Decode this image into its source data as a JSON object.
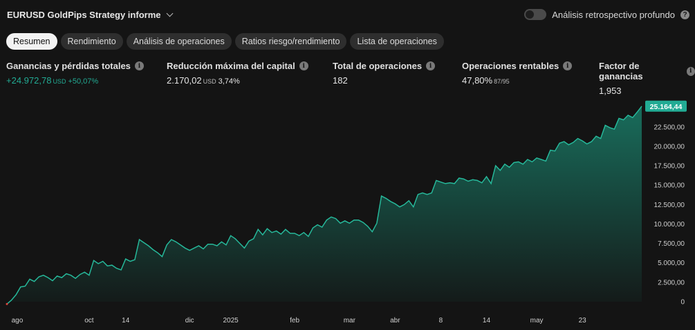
{
  "header": {
    "title": "EURUSD GoldPips Strategy informe",
    "deep_backtest_label": "Análisis retrospectivo profundo"
  },
  "tabs": [
    {
      "label": "Resumen",
      "active": true
    },
    {
      "label": "Rendimiento",
      "active": false
    },
    {
      "label": "Análisis de operaciones",
      "active": false
    },
    {
      "label": "Ratios riesgo/rendimiento",
      "active": false
    },
    {
      "label": "Lista de operaciones",
      "active": false
    }
  ],
  "stats": {
    "net_profit": {
      "label": "Ganancias y pérdidas totales",
      "value": "+24.972,78",
      "unit": "USD",
      "pct": "+50,07%"
    },
    "max_drawdown": {
      "label": "Reducción máxima del capital",
      "value": "2.170,02",
      "unit": "USD",
      "pct": "3,74%"
    },
    "total_trades": {
      "label": "Total de operaciones",
      "value": "182"
    },
    "profitable": {
      "label": "Operaciones rentables",
      "value": "47,80%",
      "sub": "87/95"
    },
    "profit_factor": {
      "label": "Factor de ganancias",
      "value": "1,953"
    }
  },
  "colors": {
    "accent": "#22ab94",
    "line": "#26b89a",
    "bg": "#141414"
  },
  "chart_data": {
    "type": "area",
    "last_value_label": "25.164,44",
    "ylim": [
      0,
      25500
    ],
    "yticks": [
      0,
      2500,
      5000,
      7500,
      10000,
      12500,
      15000,
      17500,
      20000,
      22500
    ],
    "ytick_labels": [
      "0",
      "2.500,00",
      "5.000,00",
      "7.500,00",
      "10.000,00",
      "12.500,00",
      "15.000,00",
      "17.500,00",
      "20.000,00",
      "22.500,00"
    ],
    "xtick_labels": [
      "ago",
      "oct",
      "14",
      "dic",
      "2025",
      "feb",
      "mar",
      "abr",
      "8",
      "14",
      "may",
      "23"
    ],
    "xtick_index": [
      1,
      18,
      26,
      40,
      49,
      63,
      75,
      85,
      95,
      105,
      116,
      126
    ],
    "values": [
      -300,
      200,
      900,
      1900,
      2000,
      2900,
      2600,
      3200,
      3400,
      3100,
      2700,
      3300,
      3100,
      3600,
      3400,
      3000,
      3500,
      3800,
      3400,
      5300,
      4900,
      5200,
      4600,
      4700,
      4300,
      4100,
      5500,
      5200,
      5400,
      8000,
      7600,
      7200,
      6700,
      6300,
      5800,
      7300,
      8000,
      7700,
      7300,
      6900,
      6600,
      6900,
      7200,
      6800,
      7400,
      7400,
      7200,
      7700,
      7300,
      8500,
      8100,
      7500,
      6900,
      7800,
      8100,
      9300,
      8600,
      9400,
      8900,
      9100,
      8700,
      9300,
      8800,
      8800,
      8500,
      8900,
      8400,
      9500,
      9900,
      9600,
      10500,
      10900,
      10700,
      10100,
      10400,
      10100,
      10500,
      10500,
      10200,
      9700,
      9000,
      10100,
      13600,
      13300,
      12900,
      12600,
      12200,
      12500,
      13000,
      12200,
      13800,
      14000,
      13800,
      14000,
      15600,
      15400,
      15200,
      15300,
      15200,
      15900,
      15800,
      15500,
      15700,
      15600,
      15300,
      16100,
      15200,
      17500,
      16900,
      17700,
      17300,
      17900,
      18000,
      17700,
      18300,
      18000,
      18500,
      18300,
      18100,
      19500,
      19400,
      20400,
      20600,
      20200,
      20500,
      21000,
      20700,
      20300,
      20600,
      21300,
      21000,
      22700,
      22400,
      22200,
      23600,
      23400,
      24000,
      23700,
      24400,
      25164
    ]
  }
}
